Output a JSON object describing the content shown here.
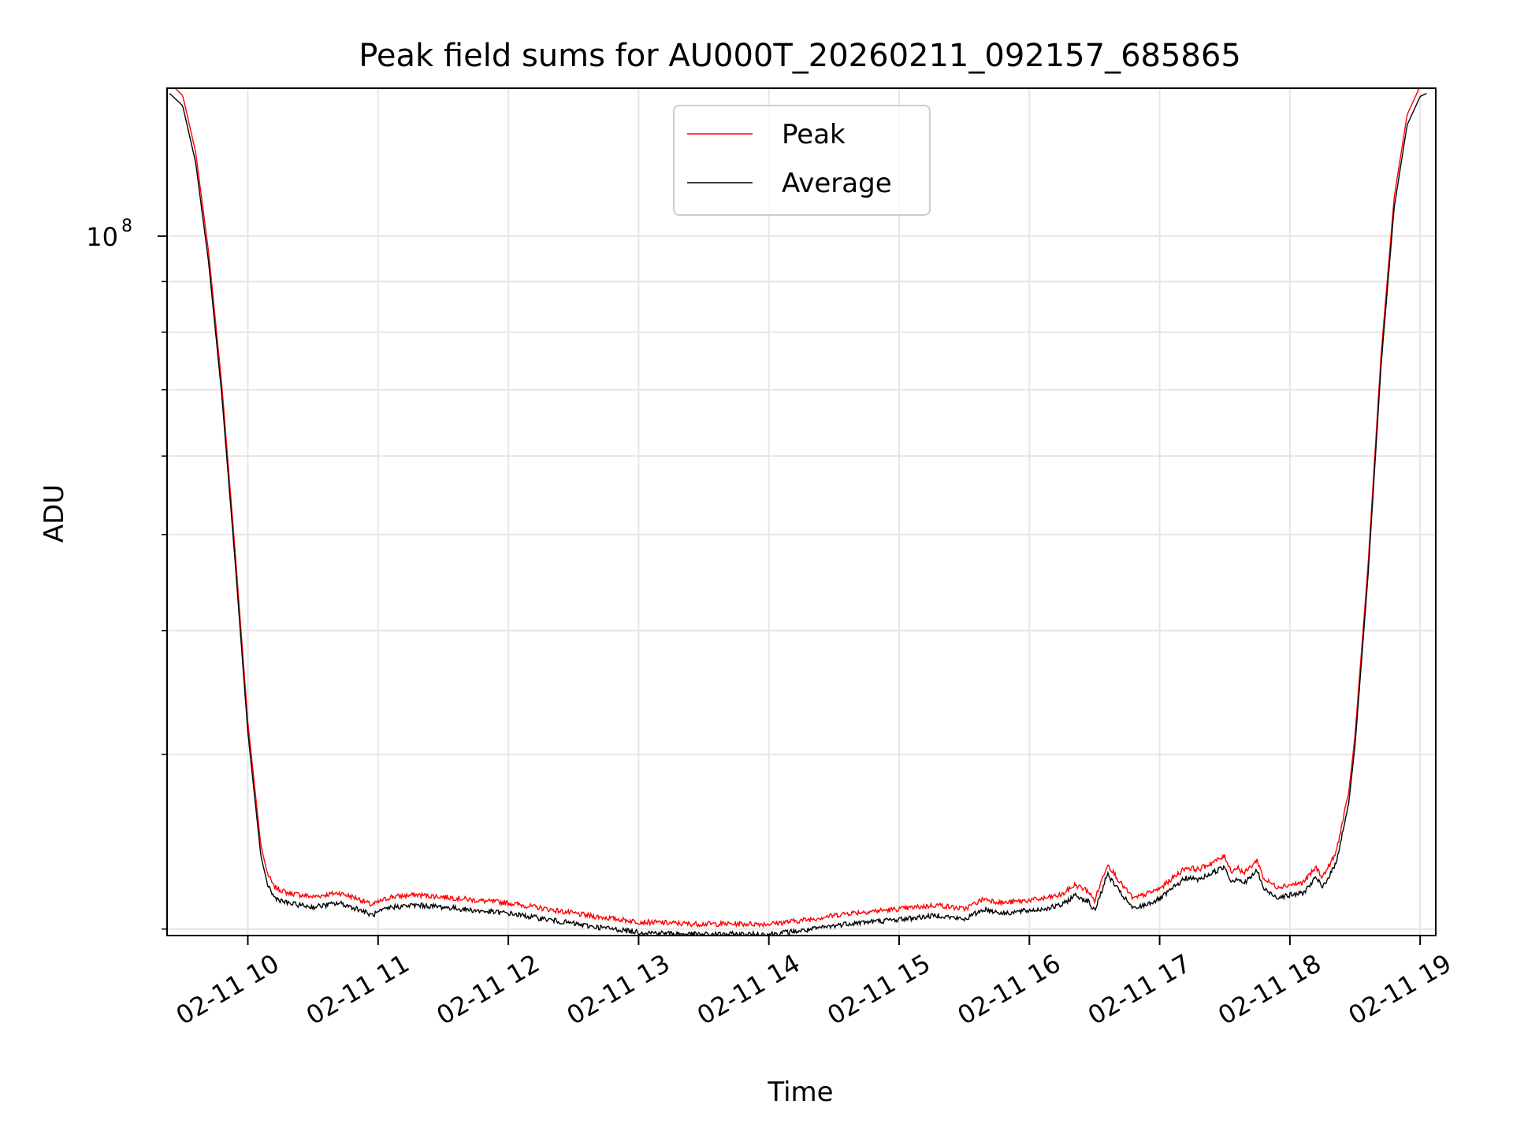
{
  "chart_data": {
    "type": "line",
    "title": "Peak field sums for AU000T_20260211_092157_685865",
    "xlabel": "Time",
    "ylabel": "ADU",
    "yscale": "log",
    "ylim": [
      19700000,
      141000000
    ],
    "y_major_ticks": [
      {
        "value": 100000000,
        "label_base": "10",
        "label_exp": "8"
      }
    ],
    "y_minor_ticks": [
      20000000,
      30000000,
      40000000,
      50000000,
      60000000,
      70000000,
      80000000,
      90000000,
      200000000
    ],
    "xlim": [
      9.38,
      19.12
    ],
    "x_ticks": [
      {
        "value": 10,
        "label": "02-11 10"
      },
      {
        "value": 11,
        "label": "02-11 11"
      },
      {
        "value": 12,
        "label": "02-11 12"
      },
      {
        "value": 13,
        "label": "02-11 13"
      },
      {
        "value": 14,
        "label": "02-11 14"
      },
      {
        "value": 15,
        "label": "02-11 15"
      },
      {
        "value": 16,
        "label": "02-11 16"
      },
      {
        "value": 17,
        "label": "02-11 17"
      },
      {
        "value": 18,
        "label": "02-11 18"
      },
      {
        "value": 19,
        "label": "02-11 19"
      }
    ],
    "grid": true,
    "legend_position": "top-center",
    "series": [
      {
        "name": "Peak",
        "color": "#ff0000",
        "offset_factor": 1.012
      },
      {
        "name": "Average",
        "color": "#000000",
        "offset_factor": 0.988
      }
    ],
    "x_hours": [
      9.4,
      9.5,
      9.6,
      9.7,
      9.8,
      9.9,
      10.0,
      10.1,
      10.15,
      10.2,
      10.3,
      10.5,
      10.7,
      10.85,
      10.95,
      11.1,
      11.3,
      11.5,
      11.8,
      12.0,
      12.3,
      12.6,
      13.0,
      13.4,
      13.8,
      14.0,
      14.3,
      14.6,
      14.8,
      15.0,
      15.3,
      15.5,
      15.65,
      15.8,
      16.1,
      16.25,
      16.35,
      16.45,
      16.5,
      16.6,
      16.7,
      16.8,
      17.0,
      17.2,
      17.3,
      17.5,
      17.55,
      17.6,
      17.65,
      17.75,
      17.8,
      17.9,
      18.1,
      18.2,
      18.25,
      18.35,
      18.45,
      18.5,
      18.6,
      18.7,
      18.8,
      18.9,
      19.0,
      19.05
    ],
    "values": [
      141000000,
      137000000,
      120000000,
      95000000,
      70000000,
      48000000,
      32000000,
      24000000,
      22500000,
      21800000,
      21500000,
      21300000,
      21500000,
      21200000,
      20900000,
      21300000,
      21400000,
      21300000,
      21100000,
      21000000,
      20700000,
      20400000,
      20100000,
      20000000,
      20000000,
      20000000,
      20200000,
      20500000,
      20600000,
      20700000,
      20900000,
      20700000,
      21200000,
      21000000,
      21200000,
      21400000,
      21900000,
      21600000,
      21100000,
      23000000,
      22000000,
      21200000,
      21700000,
      22800000,
      22700000,
      23400000,
      22600000,
      22800000,
      22500000,
      23200000,
      22200000,
      21800000,
      22000000,
      22800000,
      22300000,
      23500000,
      27000000,
      31000000,
      46000000,
      75000000,
      108000000,
      131000000,
      140000000,
      141000000
    ],
    "noise_fraction": 0.006
  }
}
